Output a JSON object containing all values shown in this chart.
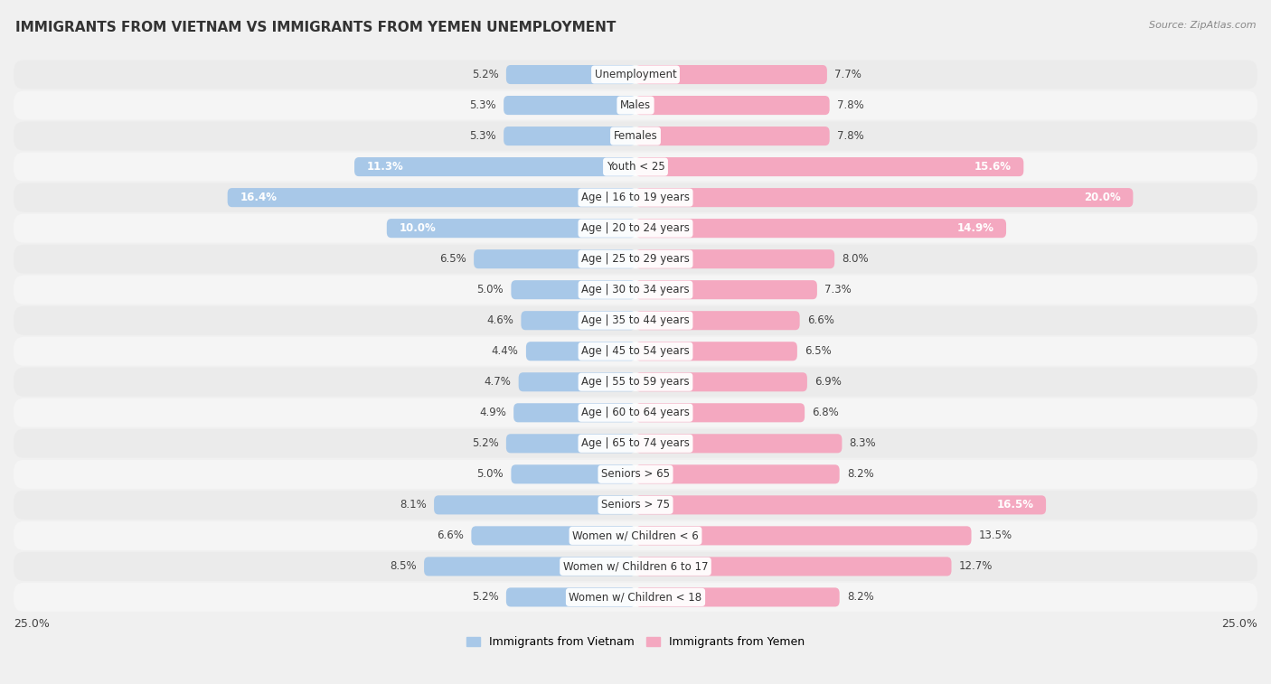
{
  "title": "IMMIGRANTS FROM VIETNAM VS IMMIGRANTS FROM YEMEN UNEMPLOYMENT",
  "source": "Source: ZipAtlas.com",
  "categories": [
    "Unemployment",
    "Males",
    "Females",
    "Youth < 25",
    "Age | 16 to 19 years",
    "Age | 20 to 24 years",
    "Age | 25 to 29 years",
    "Age | 30 to 34 years",
    "Age | 35 to 44 years",
    "Age | 45 to 54 years",
    "Age | 55 to 59 years",
    "Age | 60 to 64 years",
    "Age | 65 to 74 years",
    "Seniors > 65",
    "Seniors > 75",
    "Women w/ Children < 6",
    "Women w/ Children 6 to 17",
    "Women w/ Children < 18"
  ],
  "vietnam_values": [
    5.2,
    5.3,
    5.3,
    11.3,
    16.4,
    10.0,
    6.5,
    5.0,
    4.6,
    4.4,
    4.7,
    4.9,
    5.2,
    5.0,
    8.1,
    6.6,
    8.5,
    5.2
  ],
  "yemen_values": [
    7.7,
    7.8,
    7.8,
    15.6,
    20.0,
    14.9,
    8.0,
    7.3,
    6.6,
    6.5,
    6.9,
    6.8,
    8.3,
    8.2,
    16.5,
    13.5,
    12.7,
    8.2
  ],
  "vietnam_color": "#a8c8e8",
  "yemen_color": "#f4a8c0",
  "row_color_odd": "#ebebeb",
  "row_color_even": "#f5f5f5",
  "background_color": "#f0f0f0",
  "xlim": 25.0,
  "label_vietnam": "Immigrants from Vietnam",
  "label_yemen": "Immigrants from Yemen",
  "title_fontsize": 11,
  "source_fontsize": 8,
  "bar_label_fontsize": 8.5,
  "cat_label_fontsize": 8.5,
  "legend_fontsize": 9,
  "axis_label_fontsize": 9
}
